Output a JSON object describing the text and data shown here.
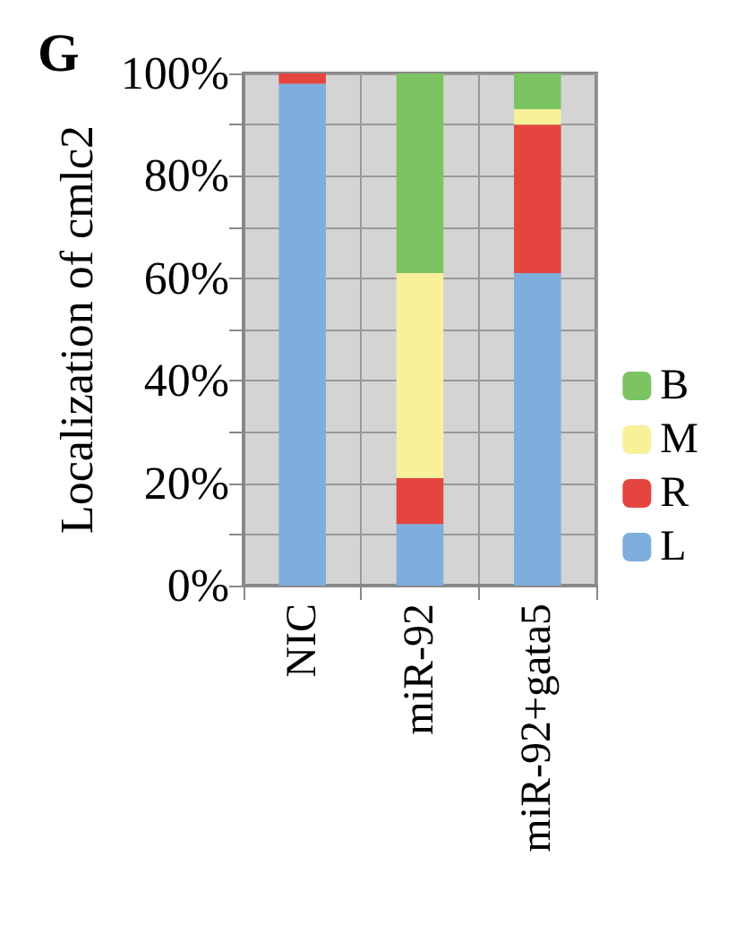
{
  "chart_data": {
    "type": "bar",
    "title": "G",
    "ylabel": "Localization of cmlc2",
    "stacked": true,
    "categories": [
      "NIC",
      "miR-92",
      "miR-92+gata5"
    ],
    "series": [
      {
        "name": "L",
        "color": "#7eaedd",
        "values": [
          98,
          12,
          61
        ]
      },
      {
        "name": "R",
        "color": "#e4453f",
        "values": [
          2,
          9,
          29
        ]
      },
      {
        "name": "M",
        "color": "#f8f19a",
        "values": [
          0,
          40,
          3
        ]
      },
      {
        "name": "B",
        "color": "#7cc362",
        "values": [
          0,
          39,
          7
        ]
      }
    ],
    "ylim": [
      0,
      100
    ],
    "yticks": [
      {
        "value": 0,
        "label": "0%"
      },
      {
        "value": 10,
        "label": null
      },
      {
        "value": 20,
        "label": "20%"
      },
      {
        "value": 30,
        "label": null
      },
      {
        "value": 40,
        "label": "40%"
      },
      {
        "value": 50,
        "label": null
      },
      {
        "value": 60,
        "label": "60%"
      },
      {
        "value": 70,
        "label": null
      },
      {
        "value": 80,
        "label": "80%"
      },
      {
        "value": 90,
        "label": null
      },
      {
        "value": 100,
        "label": "100%"
      }
    ],
    "grid": true,
    "legend": "right"
  }
}
